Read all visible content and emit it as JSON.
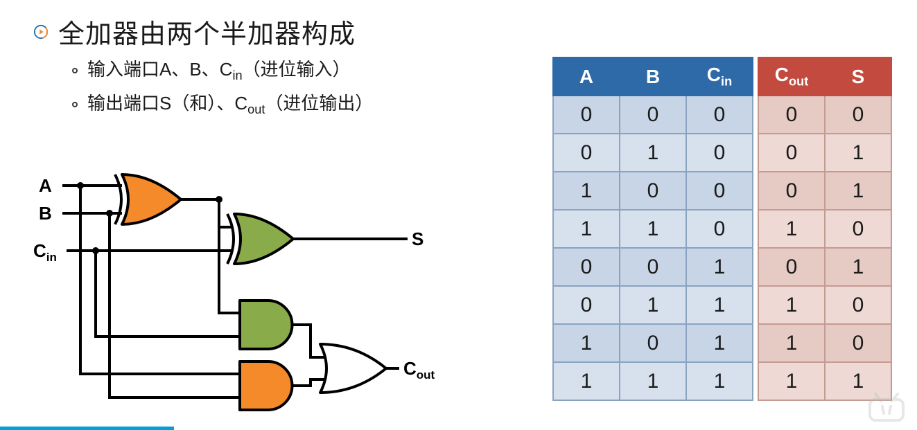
{
  "title": "全加器由两个半加器构成",
  "bullets": {
    "line1_pre": "输入端口A、B、C",
    "line1_sub": "in",
    "line1_post": "（进位输入）",
    "line2_pre": "输出端口S（和）、C",
    "line2_sub": "out",
    "line2_post": "（进位输出）"
  },
  "diagram": {
    "labels": {
      "A": "A",
      "B": "B",
      "Cin": "C",
      "Cin_sub": "in",
      "S": "S",
      "Cout": "C",
      "Cout_sub": "out"
    },
    "colors": {
      "wire": "#000000",
      "wire_width": 4,
      "xor1_fill": "#f58a2a",
      "xor2_fill": "#8aab4a",
      "and1_fill": "#8aab4a",
      "and2_fill": "#f58a2a",
      "or_fill": "#ffffff",
      "gate_stroke": "#000000",
      "gate_stroke_width": 4,
      "node_radius": 5
    }
  },
  "truth_table": {
    "input_headers": [
      "A",
      "B",
      "C<sub>in</sub>"
    ],
    "output_headers": [
      "C<sub>out</sub>",
      "S"
    ],
    "rows": [
      {
        "in": [
          0,
          0,
          0
        ],
        "out": [
          0,
          0
        ]
      },
      {
        "in": [
          0,
          1,
          0
        ],
        "out": [
          0,
          1
        ]
      },
      {
        "in": [
          1,
          0,
          0
        ],
        "out": [
          0,
          1
        ]
      },
      {
        "in": [
          1,
          1,
          0
        ],
        "out": [
          1,
          0
        ]
      },
      {
        "in": [
          0,
          0,
          1
        ],
        "out": [
          0,
          1
        ]
      },
      {
        "in": [
          0,
          1,
          1
        ],
        "out": [
          1,
          0
        ]
      },
      {
        "in": [
          1,
          0,
          1
        ],
        "out": [
          1,
          0
        ]
      },
      {
        "in": [
          1,
          1,
          1
        ],
        "out": [
          1,
          1
        ]
      }
    ],
    "style": {
      "input": {
        "header_bg": "#2f6aa8",
        "header_border": "#2f6aa8",
        "cell_bg": "#d7e1ee",
        "cell_bg_alt": "#c7d5e6",
        "cell_border": "#8aa3c0",
        "cell_text": "#1a1a1a"
      },
      "output": {
        "header_bg": "#c24a3f",
        "header_border": "#c24a3f",
        "cell_bg": "#eed9d5",
        "cell_bg_alt": "#e6cbc5",
        "cell_border": "#c49a92",
        "cell_text": "#1a1a1a"
      }
    }
  },
  "video": {
    "progress_pct": 19,
    "progress_color": "#00a1d6"
  }
}
